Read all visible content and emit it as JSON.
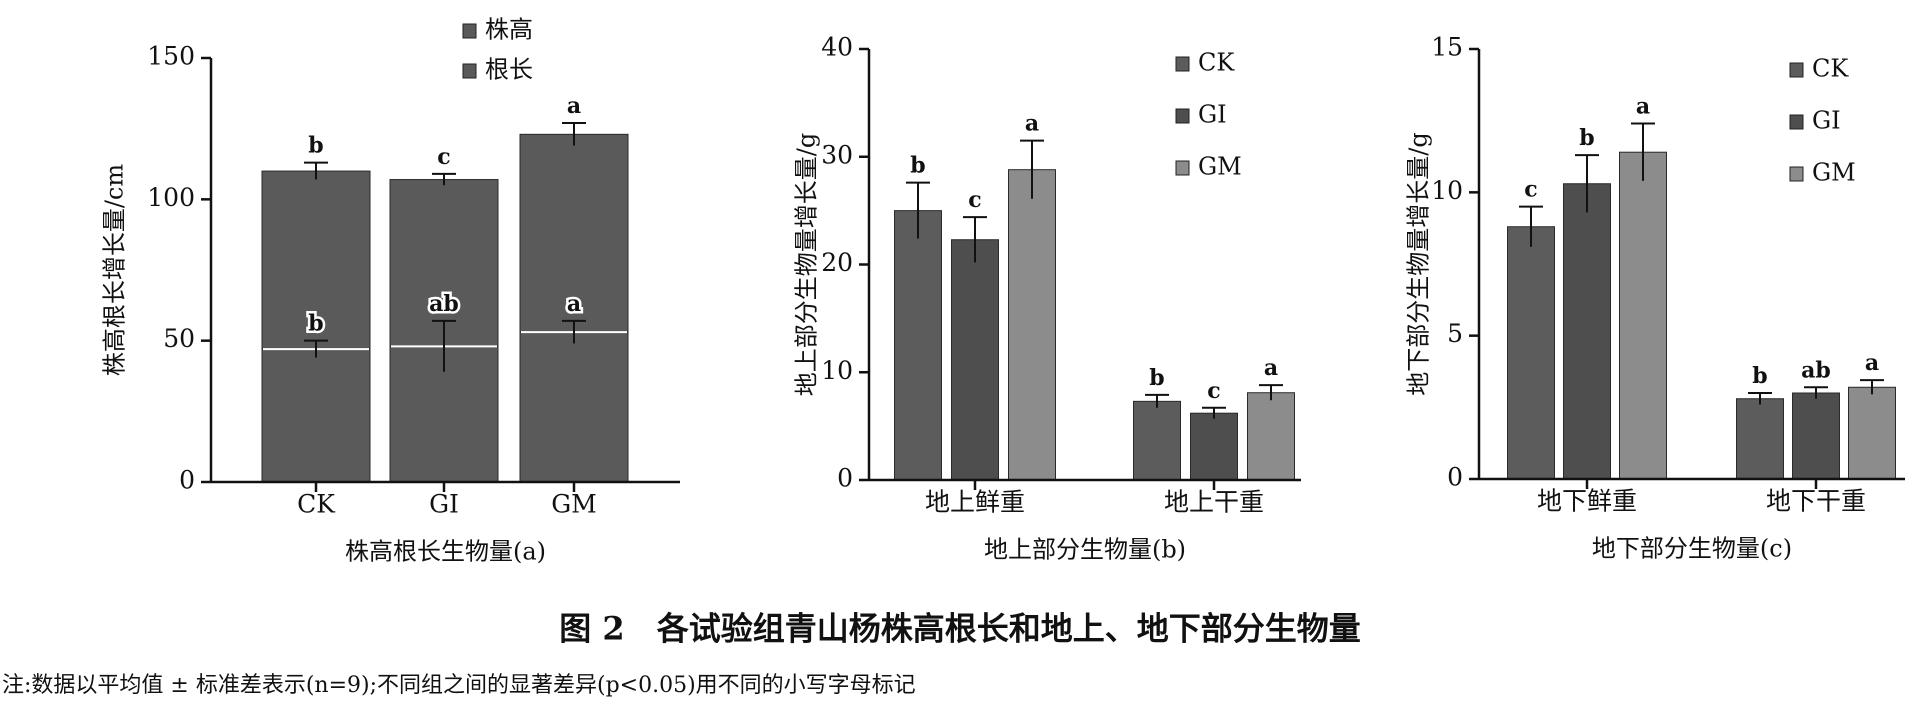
{
  "chart_data": [
    {
      "type": "bar",
      "barmode": "overlay",
      "legend": "top",
      "ylabel": "株高根长增长量/cm",
      "xlabel": "株高根长生物量(a)",
      "categories": [
        "CK",
        "GI",
        "GM"
      ],
      "ylim": [
        0,
        150
      ],
      "yticks": [
        0,
        50,
        100,
        150
      ],
      "series": [
        {
          "name": "株高",
          "color": "#5a5a5a",
          "values": [
            110,
            107,
            123
          ],
          "errors": [
            3,
            2,
            4
          ],
          "significance": [
            "b",
            "c",
            "a"
          ]
        },
        {
          "name": "根长",
          "color": "#5a5a5a",
          "values": [
            47,
            48,
            53
          ],
          "errors": [
            3,
            9,
            4
          ],
          "significance": [
            "b",
            "ab",
            "a"
          ]
        }
      ]
    },
    {
      "type": "bar",
      "barmode": "group",
      "legend": "top-right",
      "ylabel": "地上部分生物量增长量/g",
      "xlabel": "地上部分生物量(b)",
      "categories": [
        "地上鲜重",
        "地上干重"
      ],
      "ylim": [
        0,
        40
      ],
      "yticks": [
        0,
        10,
        20,
        30,
        40
      ],
      "series": [
        {
          "name": "CK",
          "color": "#5c5c5c",
          "values": [
            25,
            7.3
          ],
          "errors": [
            2.6,
            0.6
          ],
          "significance": [
            "b",
            "b"
          ]
        },
        {
          "name": "GI",
          "color": "#4e4e4e",
          "values": [
            22.3,
            6.2
          ],
          "errors": [
            2.1,
            0.5
          ],
          "significance": [
            "c",
            "c"
          ]
        },
        {
          "name": "GM",
          "color": "#8c8c8c",
          "values": [
            28.8,
            8.1
          ],
          "errors": [
            2.7,
            0.7
          ],
          "significance": [
            "a",
            "a"
          ]
        }
      ]
    },
    {
      "type": "bar",
      "barmode": "group",
      "legend": "top-right",
      "ylabel": "地下部分生物量增长量/g",
      "xlabel": "地下部分生物量(c)",
      "categories": [
        "地下鲜重",
        "地下干重"
      ],
      "ylim": [
        0,
        15
      ],
      "yticks": [
        0,
        5,
        10,
        15
      ],
      "series": [
        {
          "name": "CK",
          "color": "#5c5c5c",
          "values": [
            8.8,
            2.8
          ],
          "errors": [
            0.7,
            0.2
          ],
          "significance": [
            "c",
            "b"
          ]
        },
        {
          "name": "GI",
          "color": "#4e4e4e",
          "values": [
            10.3,
            3.0
          ],
          "errors": [
            1.0,
            0.2
          ],
          "significance": [
            "b",
            "ab"
          ]
        },
        {
          "name": "GM",
          "color": "#8c8c8c",
          "values": [
            11.4,
            3.2
          ],
          "errors": [
            1.0,
            0.25
          ],
          "significance": [
            "a",
            "a"
          ]
        }
      ]
    }
  ],
  "caption": "图 2　各试验组青山杨株高根长和地上、地下部分生物量",
  "note": "注:数据以平均值 ± 标准差表示(n=9);不同组之间的显著差异(p<0.05)用不同的小写字母标记"
}
